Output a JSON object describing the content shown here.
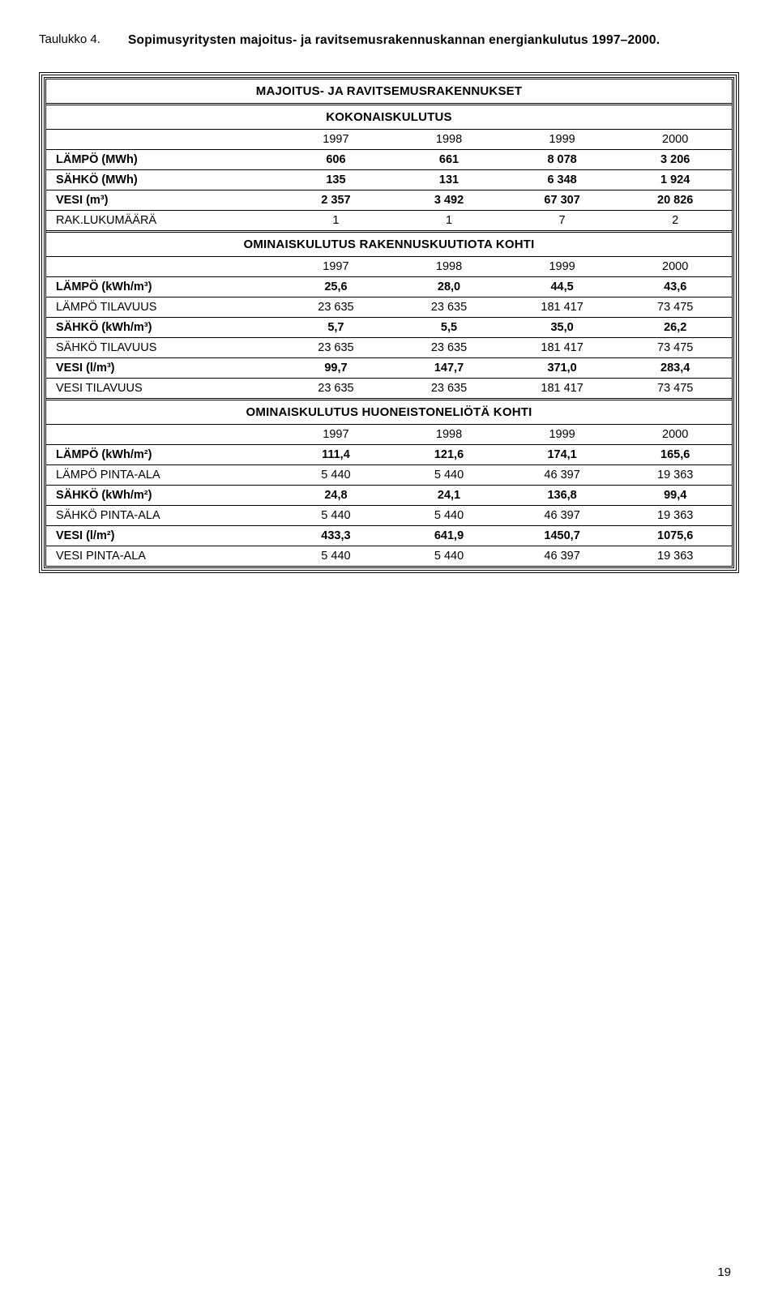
{
  "caption": {
    "label": "Taulukko 4.",
    "text": "Sopimusyritysten majoitus- ja ravitsemusrakennuskannan energian­kulutus 1997–2000."
  },
  "table": {
    "title": "MAJOITUS- JA RAVITSEMUSRAKENNUKSET",
    "sections": [
      {
        "header": "KOKONAISKULUTUS",
        "years": [
          "1997",
          "1998",
          "1999",
          "2000"
        ],
        "rows": [
          {
            "label": "LÄMPÖ (MWh)",
            "bold": true,
            "values": [
              "606",
              "661",
              "8 078",
              "3 206"
            ]
          },
          {
            "label": "SÄHKÖ (MWh)",
            "bold": true,
            "values": [
              "135",
              "131",
              "6 348",
              "1 924"
            ]
          },
          {
            "label": "VESI (m³)",
            "bold": true,
            "values": [
              "2 357",
              "3 492",
              "67 307",
              "20 826"
            ]
          },
          {
            "label": "RAK.LUKUMÄÄRÄ",
            "bold": false,
            "values": [
              "1",
              "1",
              "7",
              "2"
            ]
          }
        ]
      },
      {
        "header": "OMINAISKULUTUS RAKENNUSKUUTIOTA KOHTI",
        "years": [
          "1997",
          "1998",
          "1999",
          "2000"
        ],
        "rows": [
          {
            "label": "LÄMPÖ (kWh/m³)",
            "bold": true,
            "values": [
              "25,6",
              "28,0",
              "44,5",
              "43,6"
            ]
          },
          {
            "label": "LÄMPÖ TILAVUUS",
            "bold": false,
            "values": [
              "23 635",
              "23 635",
              "181 417",
              "73 475"
            ]
          },
          {
            "label": "SÄHKÖ (kWh/m³)",
            "bold": true,
            "values": [
              "5,7",
              "5,5",
              "35,0",
              "26,2"
            ]
          },
          {
            "label": "SÄHKÖ TILAVUUS",
            "bold": false,
            "values": [
              "23 635",
              "23 635",
              "181 417",
              "73 475"
            ]
          },
          {
            "label": "VESI (l/m³)",
            "bold": true,
            "values": [
              "99,7",
              "147,7",
              "371,0",
              "283,4"
            ]
          },
          {
            "label": "VESI TILAVUUS",
            "bold": false,
            "values": [
              "23 635",
              "23 635",
              "181 417",
              "73 475"
            ]
          }
        ]
      },
      {
        "header": "OMINAISKULUTUS HUONEISTONELIÖTÄ KOHTI",
        "years": [
          "1997",
          "1998",
          "1999",
          "2000"
        ],
        "rows": [
          {
            "label": "LÄMPÖ (kWh/m²)",
            "bold": true,
            "values": [
              "111,4",
              "121,6",
              "174,1",
              "165,6"
            ]
          },
          {
            "label": "LÄMPÖ PINTA-ALA",
            "bold": false,
            "values": [
              "5 440",
              "5 440",
              "46 397",
              "19 363"
            ]
          },
          {
            "label": "SÄHKÖ (kWh/m²)",
            "bold": true,
            "values": [
              "24,8",
              "24,1",
              "136,8",
              "99,4"
            ]
          },
          {
            "label": "SÄHKÖ PINTA-ALA",
            "bold": false,
            "values": [
              "5 440",
              "5 440",
              "46 397",
              "19 363"
            ]
          },
          {
            "label": "VESI (l/m²)",
            "bold": true,
            "values": [
              "433,3",
              "641,9",
              "1450,7",
              "1075,6"
            ]
          },
          {
            "label": "VESI PINTA-ALA",
            "bold": false,
            "values": [
              "5 440",
              "5 440",
              "46 397",
              "19 363"
            ]
          }
        ]
      }
    ]
  },
  "page_number": "19",
  "colors": {
    "background": "#ffffff",
    "text": "#000000",
    "border": "#000000"
  }
}
